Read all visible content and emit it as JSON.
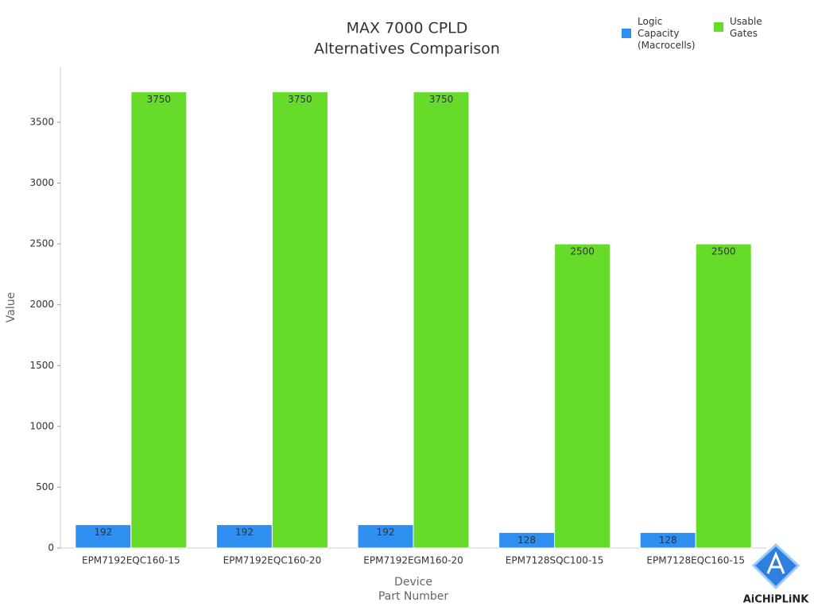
{
  "chart_data": {
    "type": "bar",
    "title": [
      "MAX 7000 CPLD",
      "Alternatives Comparison"
    ],
    "x_label": [
      "Device",
      "Part Number"
    ],
    "y_label": "Value",
    "categories": [
      "EPM7192EQC160-15",
      "EPM7192EQC160-20",
      "EPM7192EGM160-20",
      "EPM7128SQC100-15",
      "EPM7128EQC160-15"
    ],
    "series": [
      {
        "name": "Logic Capacity (Macrocells)",
        "color": "#2e8ff0",
        "values": [
          192,
          192,
          192,
          128,
          128
        ]
      },
      {
        "name": "Usable Gates",
        "color": "#66db29",
        "values": [
          3750,
          3750,
          3750,
          2500,
          2500
        ]
      }
    ],
    "ylim": [
      0,
      3950
    ],
    "yticks": [
      0,
      500,
      1000,
      1500,
      2000,
      2500,
      3000,
      3500
    ],
    "legend": "top-right",
    "watermark": "AiCHiPLiNK"
  }
}
